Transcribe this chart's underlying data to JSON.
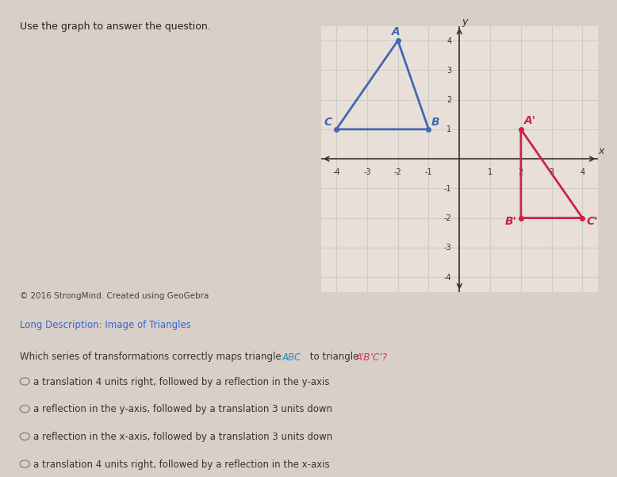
{
  "title_top": "Use the graph to answer the question.",
  "copyright": "© 2016 StrongMind. Created using GeoGebra",
  "long_desc": "Long Description: Image of Triangles",
  "options": [
    "a translation 4 units right, followed by a reflection in the y-axis",
    "a reflection in the y-axis, followed by a translation 3 units down",
    "a reflection in the x-axis, followed by a translation 3 units down",
    "a translation 4 units right, followed by a reflection in the x-axis"
  ],
  "triangle_ABC": {
    "A": [
      -2,
      4
    ],
    "B": [
      -1,
      1
    ],
    "C": [
      -4,
      1
    ],
    "color": "#4169b0"
  },
  "triangle_A1B1C1": {
    "A": [
      2,
      1
    ],
    "B": [
      2,
      -2
    ],
    "C": [
      4,
      -2
    ],
    "color": "#cc2244"
  },
  "grid_color": "#cccccc",
  "axis_color": "#333333",
  "xlim": [
    -4.5,
    4.5
  ],
  "ylim": [
    -4.5,
    4.5
  ],
  "xticks": [
    -4,
    -3,
    -2,
    -1,
    0,
    1,
    2,
    3,
    4
  ],
  "yticks": [
    -4,
    -3,
    -2,
    -1,
    0,
    1,
    2,
    3,
    4
  ],
  "graph_bg": "#e8e0d8",
  "page_bg": "#d8cfc8"
}
